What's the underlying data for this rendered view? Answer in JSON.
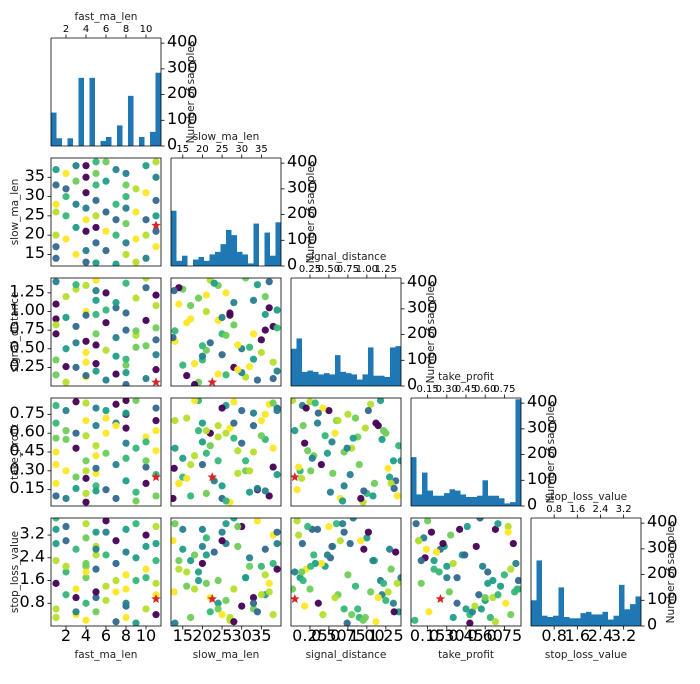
{
  "chart_data": {
    "type": "scatter-matrix",
    "variables": [
      "fast_ma_len",
      "slow_ma_len",
      "signal_distance",
      "take_profit",
      "stop_loss_value"
    ],
    "hist_ylabel": "Number of samples",
    "hist_yticks": [
      0,
      100,
      200,
      300,
      400
    ],
    "colors": {
      "bar": "#1f77b4",
      "point_palette": [
        "#440154",
        "#31688e",
        "#26828e",
        "#1f9e89",
        "#35b779",
        "#6ece58",
        "#b5de2b",
        "#fde725"
      ],
      "best": "#d62728"
    },
    "axes": [
      {
        "name": "fast_ma_len",
        "lim": [
          0.5,
          11.5
        ],
        "ticks": [
          2,
          4,
          6,
          8,
          10
        ],
        "tick_labels": [
          "2",
          "4",
          "6",
          "8",
          "10"
        ]
      },
      {
        "name": "slow_ma_len",
        "lim": [
          12,
          40
        ],
        "ticks": [
          15,
          20,
          25,
          30,
          35
        ],
        "tick_labels": [
          "15",
          "20",
          "25",
          "30",
          "35"
        ]
      },
      {
        "name": "signal_distance",
        "lim": [
          0.0,
          1.45
        ],
        "ticks": [
          0.25,
          0.5,
          0.75,
          1.0,
          1.25
        ],
        "tick_labels": [
          "0.25",
          "0.50",
          "0.75",
          "1.00",
          "1.25"
        ]
      },
      {
        "name": "take_profit",
        "lim": [
          0.02,
          0.88
        ],
        "ticks": [
          0.15,
          0.3,
          0.45,
          0.6,
          0.75
        ],
        "tick_labels": [
          "0.15",
          "0.30",
          "0.45",
          "0.60",
          "0.75"
        ]
      },
      {
        "name": "stop_loss_value",
        "lim": [
          0.0,
          3.8
        ],
        "ticks": [
          0.8,
          1.6,
          2.4,
          3.2
        ],
        "tick_labels": [
          "0.8",
          "1.6",
          "2.4",
          "3.2"
        ]
      }
    ],
    "histograms": [
      {
        "variable": "fast_ma_len",
        "bin_edges": [
          0.5,
          1.05,
          1.6,
          2.15,
          2.7,
          3.25,
          3.8,
          4.35,
          4.9,
          5.45,
          6.0,
          6.55,
          7.1,
          7.65,
          8.2,
          8.75,
          9.3,
          9.85,
          10.4,
          10.95,
          11.5
        ],
        "counts": [
          130,
          30,
          0,
          30,
          0,
          265,
          0,
          265,
          0,
          20,
          35,
          0,
          80,
          0,
          195,
          0,
          35,
          0,
          55,
          285
        ]
      },
      {
        "variable": "slow_ma_len",
        "bin_edges": [
          12,
          13.4,
          14.8,
          16.2,
          17.6,
          19.0,
          20.4,
          21.8,
          23.2,
          24.6,
          26.0,
          27.4,
          28.8,
          30.2,
          31.6,
          33.0,
          34.4,
          35.8,
          37.2,
          38.6,
          40
        ],
        "counts": [
          215,
          20,
          40,
          0,
          25,
          35,
          20,
          45,
          55,
          85,
          140,
          120,
          55,
          45,
          10,
          165,
          0,
          130,
          40,
          170
        ]
      },
      {
        "variable": "signal_distance",
        "bin_edges": [
          0.0,
          0.0725,
          0.145,
          0.2175,
          0.29,
          0.3625,
          0.435,
          0.5075,
          0.58,
          0.6525,
          0.725,
          0.7975,
          0.87,
          0.9425,
          1.015,
          1.0875,
          1.16,
          1.2325,
          1.305,
          1.3775,
          1.45
        ],
        "counts": [
          145,
          185,
          55,
          60,
          55,
          45,
          50,
          45,
          120,
          55,
          50,
          45,
          25,
          45,
          150,
          40,
          40,
          35,
          150,
          155
        ]
      },
      {
        "variable": "take_profit",
        "bin_edges": [
          0.02,
          0.063,
          0.106,
          0.149,
          0.192,
          0.235,
          0.278,
          0.321,
          0.364,
          0.407,
          0.45,
          0.493,
          0.536,
          0.579,
          0.622,
          0.665,
          0.708,
          0.751,
          0.794,
          0.837,
          0.88
        ],
        "counts": [
          190,
          45,
          130,
          60,
          40,
          40,
          50,
          65,
          60,
          45,
          35,
          35,
          40,
          100,
          40,
          40,
          30,
          10,
          15,
          415
        ]
      },
      {
        "variable": "stop_loss_value",
        "bin_edges": [
          0.0,
          0.19,
          0.38,
          0.57,
          0.76,
          0.95,
          1.14,
          1.33,
          1.52,
          1.71,
          1.9,
          2.09,
          2.28,
          2.47,
          2.66,
          2.85,
          3.04,
          3.23,
          3.42,
          3.61,
          3.8
        ],
        "counts": [
          100,
          255,
          40,
          35,
          40,
          150,
          35,
          30,
          30,
          50,
          55,
          45,
          45,
          55,
          25,
          40,
          160,
          65,
          85,
          115
        ]
      }
    ],
    "best_point": {
      "fast_ma_len": 11,
      "slow_ma_len": 22.5,
      "signal_distance": 0.05,
      "take_profit": 0.25,
      "stop_loss_value": 0.95
    },
    "samples": [
      {
        "fast_ma_len": 1,
        "slow_ma_len": 14,
        "signal_distance": 1.1,
        "take_profit": 0.2,
        "stop_loss_value": 2.3
      },
      {
        "fast_ma_len": 1,
        "slow_ma_len": 20,
        "signal_distance": 0.35,
        "take_profit": 0.68,
        "stop_loss_value": 3.4
      },
      {
        "fast_ma_len": 1,
        "slow_ma_len": 33,
        "signal_distance": 0.7,
        "take_profit": 0.45,
        "stop_loss_value": 0.6
      },
      {
        "fast_ma_len": 1,
        "slow_ma_len": 37,
        "signal_distance": 1.4,
        "take_profit": 0.1,
        "stop_loss_value": 1.5
      },
      {
        "fast_ma_len": 1,
        "slow_ma_len": 26,
        "signal_distance": 0.15,
        "take_profit": 0.82,
        "stop_loss_value": 2.9
      },
      {
        "fast_ma_len": 1,
        "slow_ma_len": 17,
        "signal_distance": 0.9,
        "take_profit": 0.35,
        "stop_loss_value": 0.3
      },
      {
        "fast_ma_len": 2,
        "slow_ma_len": 36,
        "signal_distance": 1.2,
        "take_profit": 0.55,
        "stop_loss_value": 1.1
      },
      {
        "fast_ma_len": 2,
        "slow_ma_len": 30,
        "signal_distance": 0.5,
        "take_profit": 0.78,
        "stop_loss_value": 3.5
      },
      {
        "fast_ma_len": 2,
        "slow_ma_len": 19,
        "signal_distance": 0.05,
        "take_profit": 0.62,
        "stop_loss_value": 1.9
      },
      {
        "fast_ma_len": 3,
        "slow_ma_len": 15,
        "signal_distance": 1.3,
        "take_profit": 0.25,
        "stop_loss_value": 2.7
      },
      {
        "fast_ma_len": 3,
        "slow_ma_len": 38,
        "signal_distance": 0.8,
        "take_profit": 0.48,
        "stop_loss_value": 0.4
      },
      {
        "fast_ma_len": 3,
        "slow_ma_len": 28,
        "signal_distance": 0.25,
        "take_profit": 0.85,
        "stop_loss_value": 1.3
      },
      {
        "fast_ma_len": 4,
        "slow_ma_len": 21,
        "signal_distance": 1.0,
        "take_profit": 0.12,
        "stop_loss_value": 3.1
      },
      {
        "fast_ma_len": 4,
        "slow_ma_len": 35,
        "signal_distance": 0.45,
        "take_profit": 0.58,
        "stop_loss_value": 2.1
      },
      {
        "fast_ma_len": 4,
        "slow_ma_len": 24,
        "signal_distance": 1.35,
        "take_profit": 0.38,
        "stop_loss_value": 0.8
      },
      {
        "fast_ma_len": 4,
        "slow_ma_len": 13,
        "signal_distance": 0.6,
        "take_profit": 0.7,
        "stop_loss_value": 3.6
      },
      {
        "fast_ma_len": 4,
        "slow_ma_len": 31,
        "signal_distance": 0.12,
        "take_profit": 0.3,
        "stop_loss_value": 1.7
      },
      {
        "fast_ma_len": 4,
        "slow_ma_len": 27,
        "signal_distance": 0.95,
        "take_profit": 0.05,
        "stop_loss_value": 0.2
      },
      {
        "fast_ma_len": 5,
        "slow_ma_len": 18,
        "signal_distance": 0.3,
        "take_profit": 0.42,
        "stop_loss_value": 2.5
      },
      {
        "fast_ma_len": 5,
        "slow_ma_len": 33,
        "signal_distance": 1.15,
        "take_profit": 0.66,
        "stop_loss_value": 1.0
      },
      {
        "fast_ma_len": 5,
        "slow_ma_len": 25,
        "signal_distance": 0.7,
        "take_profit": 0.18,
        "stop_loss_value": 3.3
      },
      {
        "fast_ma_len": 5,
        "slow_ma_len": 39,
        "signal_distance": 0.2,
        "take_profit": 0.8,
        "stop_loss_value": 2.0
      },
      {
        "fast_ma_len": 5,
        "slow_ma_len": 22,
        "signal_distance": 1.42,
        "take_profit": 0.5,
        "stop_loss_value": 0.5
      },
      {
        "fast_ma_len": 5,
        "slow_ma_len": 29,
        "signal_distance": 0.55,
        "take_profit": 0.28,
        "stop_loss_value": 2.8
      },
      {
        "fast_ma_len": 6,
        "slow_ma_len": 16,
        "signal_distance": 0.85,
        "take_profit": 0.72,
        "stop_loss_value": 1.4
      },
      {
        "fast_ma_len": 6,
        "slow_ma_len": 34,
        "signal_distance": 0.08,
        "take_profit": 0.15,
        "stop_loss_value": 3.7
      },
      {
        "fast_ma_len": 6,
        "slow_ma_len": 26,
        "signal_distance": 1.25,
        "take_profit": 0.6,
        "stop_loss_value": 0.9
      },
      {
        "fast_ma_len": 7,
        "slow_ma_len": 20,
        "signal_distance": 0.4,
        "take_profit": 0.35,
        "stop_loss_value": 2.2
      },
      {
        "fast_ma_len": 7,
        "slow_ma_len": 37,
        "signal_distance": 1.05,
        "take_profit": 0.83,
        "stop_loss_value": 1.2
      },
      {
        "fast_ma_len": 7,
        "slow_ma_len": 12.5,
        "signal_distance": 0.65,
        "take_profit": 0.08,
        "stop_loss_value": 3.0
      },
      {
        "fast_ma_len": 8,
        "slow_ma_len": 30,
        "signal_distance": 0.18,
        "take_profit": 0.52,
        "stop_loss_value": 0.7
      },
      {
        "fast_ma_len": 8,
        "slow_ma_len": 23,
        "signal_distance": 1.38,
        "take_profit": 0.22,
        "stop_loss_value": 2.6
      },
      {
        "fast_ma_len": 8,
        "slow_ma_len": 36,
        "signal_distance": 0.75,
        "take_profit": 0.75,
        "stop_loss_value": 1.8
      },
      {
        "fast_ma_len": 8,
        "slow_ma_len": 15,
        "signal_distance": 0.28,
        "take_profit": 0.4,
        "stop_loss_value": 3.4
      },
      {
        "fast_ma_len": 8,
        "slow_ma_len": 27,
        "signal_distance": 0.98,
        "take_profit": 0.64,
        "stop_loss_value": 0.3
      },
      {
        "fast_ma_len": 9,
        "slow_ma_len": 32,
        "signal_distance": 0.52,
        "take_profit": 0.13,
        "stop_loss_value": 2.4
      },
      {
        "fast_ma_len": 9,
        "slow_ma_len": 19,
        "signal_distance": 1.18,
        "take_profit": 0.86,
        "stop_loss_value": 1.6
      },
      {
        "fast_ma_len": 10,
        "slow_ma_len": 38,
        "signal_distance": 0.1,
        "take_profit": 0.33,
        "stop_loss_value": 3.2
      },
      {
        "fast_ma_len": 10,
        "slow_ma_len": 24,
        "signal_distance": 0.88,
        "take_profit": 0.57,
        "stop_loss_value": 0.6
      },
      {
        "fast_ma_len": 10,
        "slow_ma_len": 14,
        "signal_distance": 1.32,
        "take_profit": 0.2,
        "stop_loss_value": 2.0
      },
      {
        "fast_ma_len": 11,
        "slow_ma_len": 35,
        "signal_distance": 0.62,
        "take_profit": 0.7,
        "stop_loss_value": 1.1
      },
      {
        "fast_ma_len": 11,
        "slow_ma_len": 29,
        "signal_distance": 0.22,
        "take_profit": 0.46,
        "stop_loss_value": 3.5
      },
      {
        "fast_ma_len": 11,
        "slow_ma_len": 17,
        "signal_distance": 1.08,
        "take_profit": 0.1,
        "stop_loss_value": 2.3
      },
      {
        "fast_ma_len": 11,
        "slow_ma_len": 25,
        "signal_distance": 0.42,
        "take_profit": 0.8,
        "stop_loss_value": 0.4
      },
      {
        "fast_ma_len": 11,
        "slow_ma_len": 39,
        "signal_distance": 0.78,
        "take_profit": 0.27,
        "stop_loss_value": 2.9
      },
      {
        "fast_ma_len": 2,
        "slow_ma_len": 25,
        "signal_distance": 0.92,
        "take_profit": 0.08,
        "stop_loss_value": 3.0
      },
      {
        "fast_ma_len": 3,
        "slow_ma_len": 22,
        "signal_distance": 0.58,
        "take_profit": 0.6,
        "stop_loss_value": 1.0
      },
      {
        "fast_ma_len": 4,
        "slow_ma_len": 38,
        "signal_distance": 0.32,
        "take_profit": 0.84,
        "stop_loss_value": 2.2
      },
      {
        "fast_ma_len": 5,
        "slow_ma_len": 12.8,
        "signal_distance": 1.28,
        "take_profit": 0.32,
        "stop_loss_value": 1.2
      },
      {
        "fast_ma_len": 6,
        "slow_ma_len": 21,
        "signal_distance": 0.48,
        "take_profit": 0.44,
        "stop_loss_value": 2.5
      },
      {
        "fast_ma_len": 7,
        "slow_ma_len": 28,
        "signal_distance": 1.12,
        "take_profit": 0.68,
        "stop_loss_value": 0.15
      },
      {
        "fast_ma_len": 8,
        "slow_ma_len": 18,
        "signal_distance": 0.02,
        "take_profit": 0.86,
        "stop_loss_value": 1.3
      },
      {
        "fast_ma_len": 9,
        "slow_ma_len": 26,
        "signal_distance": 0.68,
        "take_profit": 0.06,
        "stop_loss_value": 3.6
      },
      {
        "fast_ma_len": 10,
        "slow_ma_len": 31,
        "signal_distance": 1.45,
        "take_profit": 0.38,
        "stop_loss_value": 1.7
      },
      {
        "fast_ma_len": 1,
        "slow_ma_len": 28,
        "signal_distance": 0.82,
        "take_profit": 0.56,
        "stop_loss_value": 3.8
      },
      {
        "fast_ma_len": 4,
        "slow_ma_len": 16,
        "signal_distance": 0.14,
        "take_profit": 0.24,
        "stop_loss_value": 1.9
      },
      {
        "fast_ma_len": 5,
        "slow_ma_len": 36,
        "signal_distance": 0.96,
        "take_profit": 0.14,
        "stop_loss_value": 2.7
      },
      {
        "fast_ma_len": 8,
        "slow_ma_len": 33,
        "signal_distance": 0.36,
        "take_profit": 0.76,
        "stop_loss_value": 0.8
      },
      {
        "fast_ma_len": 11,
        "slow_ma_len": 21,
        "signal_distance": 1.22,
        "take_profit": 0.62,
        "stop_loss_value": 1.5
      },
      {
        "fast_ma_len": 9,
        "slow_ma_len": 13,
        "signal_distance": 0.74,
        "take_profit": 0.48,
        "stop_loss_value": 0.1
      },
      {
        "fast_ma_len": 2,
        "slow_ma_len": 32,
        "signal_distance": 0.26,
        "take_profit": 0.3,
        "stop_loss_value": 2.1
      },
      {
        "fast_ma_len": 6,
        "slow_ma_len": 39,
        "signal_distance": 1.02,
        "take_profit": 0.78,
        "stop_loss_value": 3.3
      },
      {
        "fast_ma_len": 10,
        "slow_ma_len": 20,
        "signal_distance": 0.54,
        "take_profit": 0.53,
        "stop_loss_value": 2.8
      },
      {
        "fast_ma_len": 3,
        "slow_ma_len": 34,
        "signal_distance": 1.36,
        "take_profit": 0.16,
        "stop_loss_value": 0.5
      },
      {
        "fast_ma_len": 7,
        "slow_ma_len": 24,
        "signal_distance": 0.16,
        "take_profit": 0.66,
        "stop_loss_value": 1.6
      }
    ]
  }
}
